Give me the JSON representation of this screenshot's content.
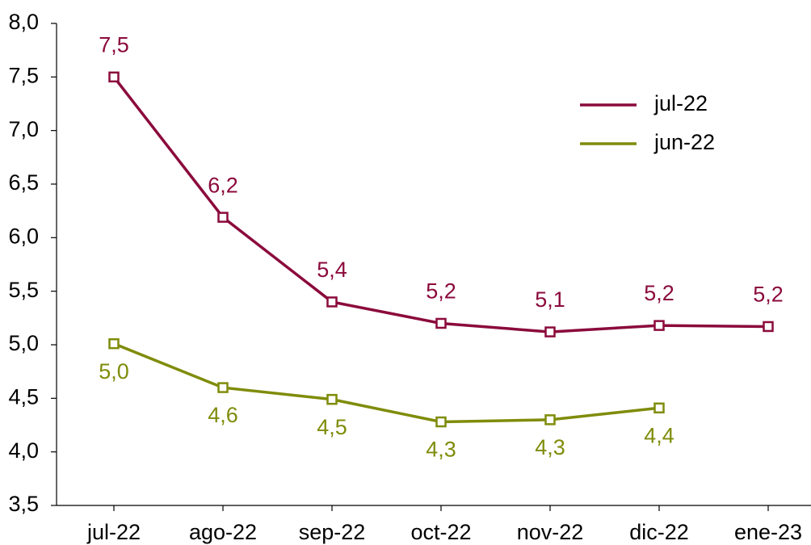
{
  "chart_data": {
    "type": "line",
    "categories": [
      "jul-22",
      "ago-22",
      "sep-22",
      "oct-22",
      "nov-22",
      "dic-22",
      "ene-23"
    ],
    "series": [
      {
        "name": "jul-22",
        "color": "#8b0a3c",
        "values": [
          7.5,
          6.19,
          5.4,
          5.2,
          5.12,
          5.18,
          5.17
        ],
        "value_labels": [
          "7,5",
          "6,2",
          "5,4",
          "5,2",
          "5,1",
          "5,2",
          "5,2"
        ]
      },
      {
        "name": "jun-22",
        "color": "#7f8c0a",
        "values": [
          5.01,
          4.6,
          4.49,
          4.28,
          4.3,
          4.41,
          null
        ],
        "value_labels": [
          "5,0",
          "4,6",
          "4,5",
          "4,3",
          "4,3",
          "4,4",
          null
        ]
      }
    ],
    "ylim": [
      3.5,
      8.0
    ],
    "yticks": [
      {
        "value": 3.5,
        "label": "3,5"
      },
      {
        "value": 4.0,
        "label": "4,0"
      },
      {
        "value": 4.5,
        "label": "4,5"
      },
      {
        "value": 5.0,
        "label": "5,0"
      },
      {
        "value": 5.5,
        "label": "5,5"
      },
      {
        "value": 6.0,
        "label": "6,0"
      },
      {
        "value": 6.5,
        "label": "6,5"
      },
      {
        "value": 7.0,
        "label": "7,0"
      },
      {
        "value": 7.5,
        "label": "7,5"
      },
      {
        "value": 8.0,
        "label": "8,0"
      }
    ],
    "grid": false,
    "legend": "upper right"
  }
}
